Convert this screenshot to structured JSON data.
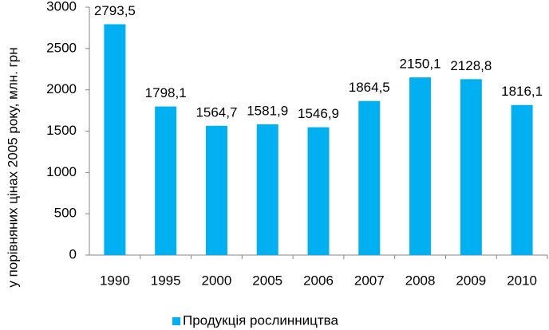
{
  "chart_data": {
    "type": "bar",
    "y_label": "у порівняних цінах 2005 року, млн. грн",
    "categories": [
      "1990",
      "1995",
      "2000",
      "2005",
      "2006",
      "2007",
      "2008",
      "2009",
      "2010"
    ],
    "series": [
      {
        "name": "Продукція рослинництва",
        "color": "#00b0f0",
        "values": [
          2793.5,
          1798.1,
          1564.7,
          1581.9,
          1546.9,
          1864.5,
          2150.1,
          2128.8,
          1816.1
        ],
        "value_labels": [
          "2793,5",
          "1798,1",
          "1564,7",
          "1581,9",
          "1546,9",
          "1864,5",
          "2150,1",
          "2128,8",
          "1816,1"
        ]
      }
    ],
    "ylim": [
      0,
      3000
    ],
    "yticks": [
      0,
      500,
      1000,
      1500,
      2000,
      2500,
      3000
    ],
    "grid": false,
    "legend": "bottom"
  }
}
